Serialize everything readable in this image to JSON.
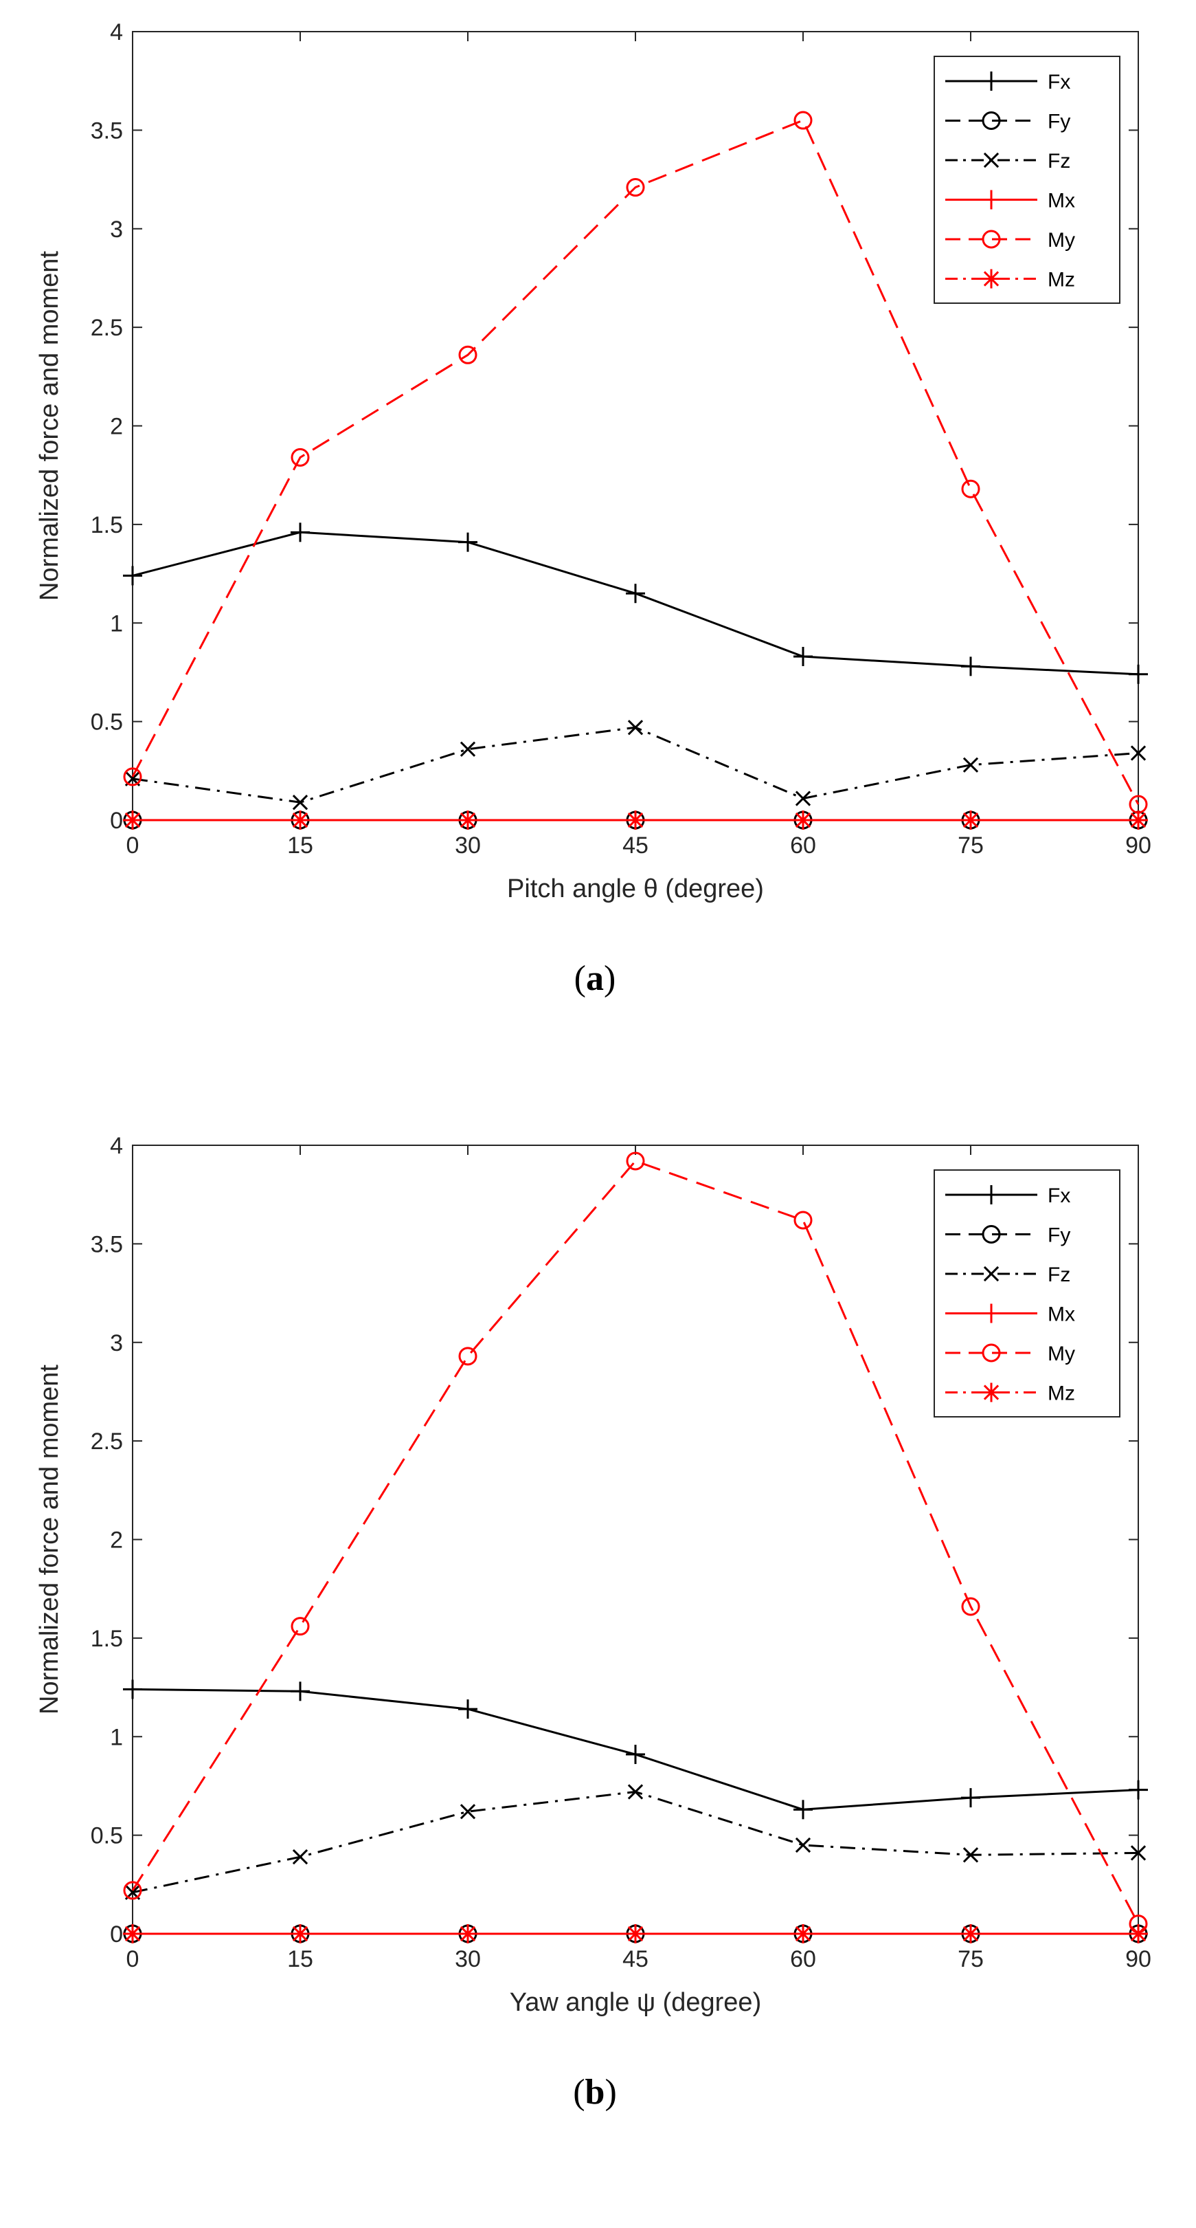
{
  "chart_data": [
    {
      "type": "line",
      "panel_label": "a",
      "xlabel": "Pitch angle θ (degree)",
      "ylabel": "Normalized force and moment",
      "x": [
        0,
        15,
        30,
        45,
        60,
        75,
        90
      ],
      "xlim": [
        0,
        90
      ],
      "ylim": [
        0,
        4
      ],
      "xticks": [
        0,
        15,
        30,
        45,
        60,
        75,
        90
      ],
      "yticks": [
        0,
        0.5,
        1,
        1.5,
        2,
        2.5,
        3,
        3.5,
        4
      ],
      "grid": false,
      "legend_position": "top-right",
      "series": [
        {
          "name": "Fx",
          "color": "#000000",
          "dash": "solid",
          "marker": "plus",
          "values": [
            1.24,
            1.46,
            1.41,
            1.15,
            0.83,
            0.78,
            0.74
          ]
        },
        {
          "name": "Fy",
          "color": "#000000",
          "dash": "dashed",
          "marker": "circle",
          "values": [
            0,
            0,
            0,
            0,
            0,
            0,
            0
          ]
        },
        {
          "name": "Fz",
          "color": "#000000",
          "dash": "dashdot",
          "marker": "x",
          "values": [
            0.21,
            0.09,
            0.36,
            0.47,
            0.11,
            0.28,
            0.34
          ]
        },
        {
          "name": "Mx",
          "color": "#ff0000",
          "dash": "solid",
          "marker": "plus",
          "values": [
            0,
            0,
            0,
            0,
            0,
            0,
            0
          ]
        },
        {
          "name": "My",
          "color": "#ff0000",
          "dash": "dashed",
          "marker": "circle",
          "values": [
            0.22,
            1.84,
            2.36,
            3.21,
            3.55,
            1.68,
            0.08
          ]
        },
        {
          "name": "Mz",
          "color": "#ff0000",
          "dash": "dashdot",
          "marker": "star",
          "values": [
            0,
            0,
            0,
            0,
            0,
            0,
            0
          ]
        }
      ]
    },
    {
      "type": "line",
      "panel_label": "b",
      "xlabel": "Yaw angle ψ (degree)",
      "ylabel": "Normalized force and moment",
      "x": [
        0,
        15,
        30,
        45,
        60,
        75,
        90
      ],
      "xlim": [
        0,
        90
      ],
      "ylim": [
        0,
        4
      ],
      "xticks": [
        0,
        15,
        30,
        45,
        60,
        75,
        90
      ],
      "yticks": [
        0,
        0.5,
        1,
        1.5,
        2,
        2.5,
        3,
        3.5,
        4
      ],
      "grid": false,
      "legend_position": "top-right",
      "series": [
        {
          "name": "Fx",
          "color": "#000000",
          "dash": "solid",
          "marker": "plus",
          "values": [
            1.24,
            1.23,
            1.14,
            0.91,
            0.63,
            0.69,
            0.73
          ]
        },
        {
          "name": "Fy",
          "color": "#000000",
          "dash": "dashed",
          "marker": "circle",
          "values": [
            0,
            0,
            0,
            0,
            0,
            0,
            0
          ]
        },
        {
          "name": "Fz",
          "color": "#000000",
          "dash": "dashdot",
          "marker": "x",
          "values": [
            0.21,
            0.39,
            0.62,
            0.72,
            0.45,
            0.4,
            0.41
          ]
        },
        {
          "name": "Mx",
          "color": "#ff0000",
          "dash": "solid",
          "marker": "plus",
          "values": [
            0,
            0,
            0,
            0,
            0,
            0,
            0
          ]
        },
        {
          "name": "My",
          "color": "#ff0000",
          "dash": "dashed",
          "marker": "circle",
          "values": [
            0.22,
            1.56,
            2.93,
            3.92,
            3.62,
            1.66,
            0.05
          ]
        },
        {
          "name": "Mz",
          "color": "#ff0000",
          "dash": "dashdot",
          "marker": "star",
          "values": [
            0,
            0,
            0,
            0,
            0,
            0,
            0
          ]
        }
      ]
    }
  ]
}
